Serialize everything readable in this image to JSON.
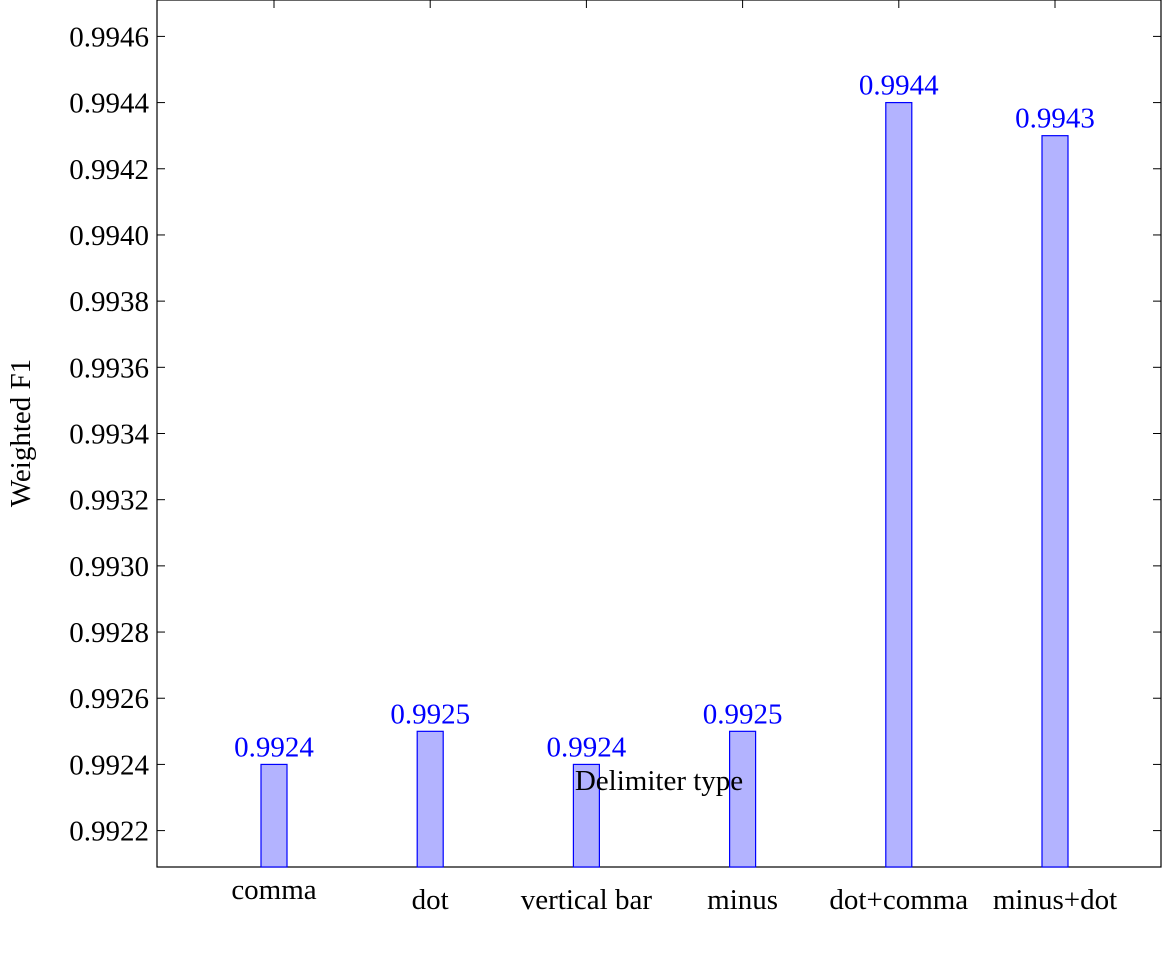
{
  "chart_data": {
    "type": "bar",
    "categories": [
      "comma",
      "dot",
      "vertical bar",
      "minus",
      "dot+comma",
      "minus+dot"
    ],
    "values": [
      0.9924,
      0.9925,
      0.9924,
      0.9925,
      0.9944,
      0.9943
    ],
    "data_labels": [
      "0.9924",
      "0.9925",
      "0.9924",
      "0.9925",
      "0.9944",
      "0.9943"
    ],
    "xlabel": "Delimiter type",
    "ylabel": "Weighted F1",
    "ylim": [
      0.99209,
      0.99471
    ],
    "yticks": [
      0.9922,
      0.9924,
      0.9926,
      0.9928,
      0.993,
      0.9932,
      0.9934,
      0.9936,
      0.9938,
      0.994,
      0.9942,
      0.9944,
      0.9946
    ],
    "ytick_labels": [
      "0.9922",
      "0.9924",
      "0.9926",
      "0.9928",
      "0.9930",
      "0.9932",
      "0.9934",
      "0.9936",
      "0.9938",
      "0.9940",
      "0.9942",
      "0.9944",
      "0.9946"
    ],
    "grid": false,
    "bar_fill": "#b3b3ff",
    "bar_stroke": "#0000ff",
    "label_color": "#0000ff"
  }
}
